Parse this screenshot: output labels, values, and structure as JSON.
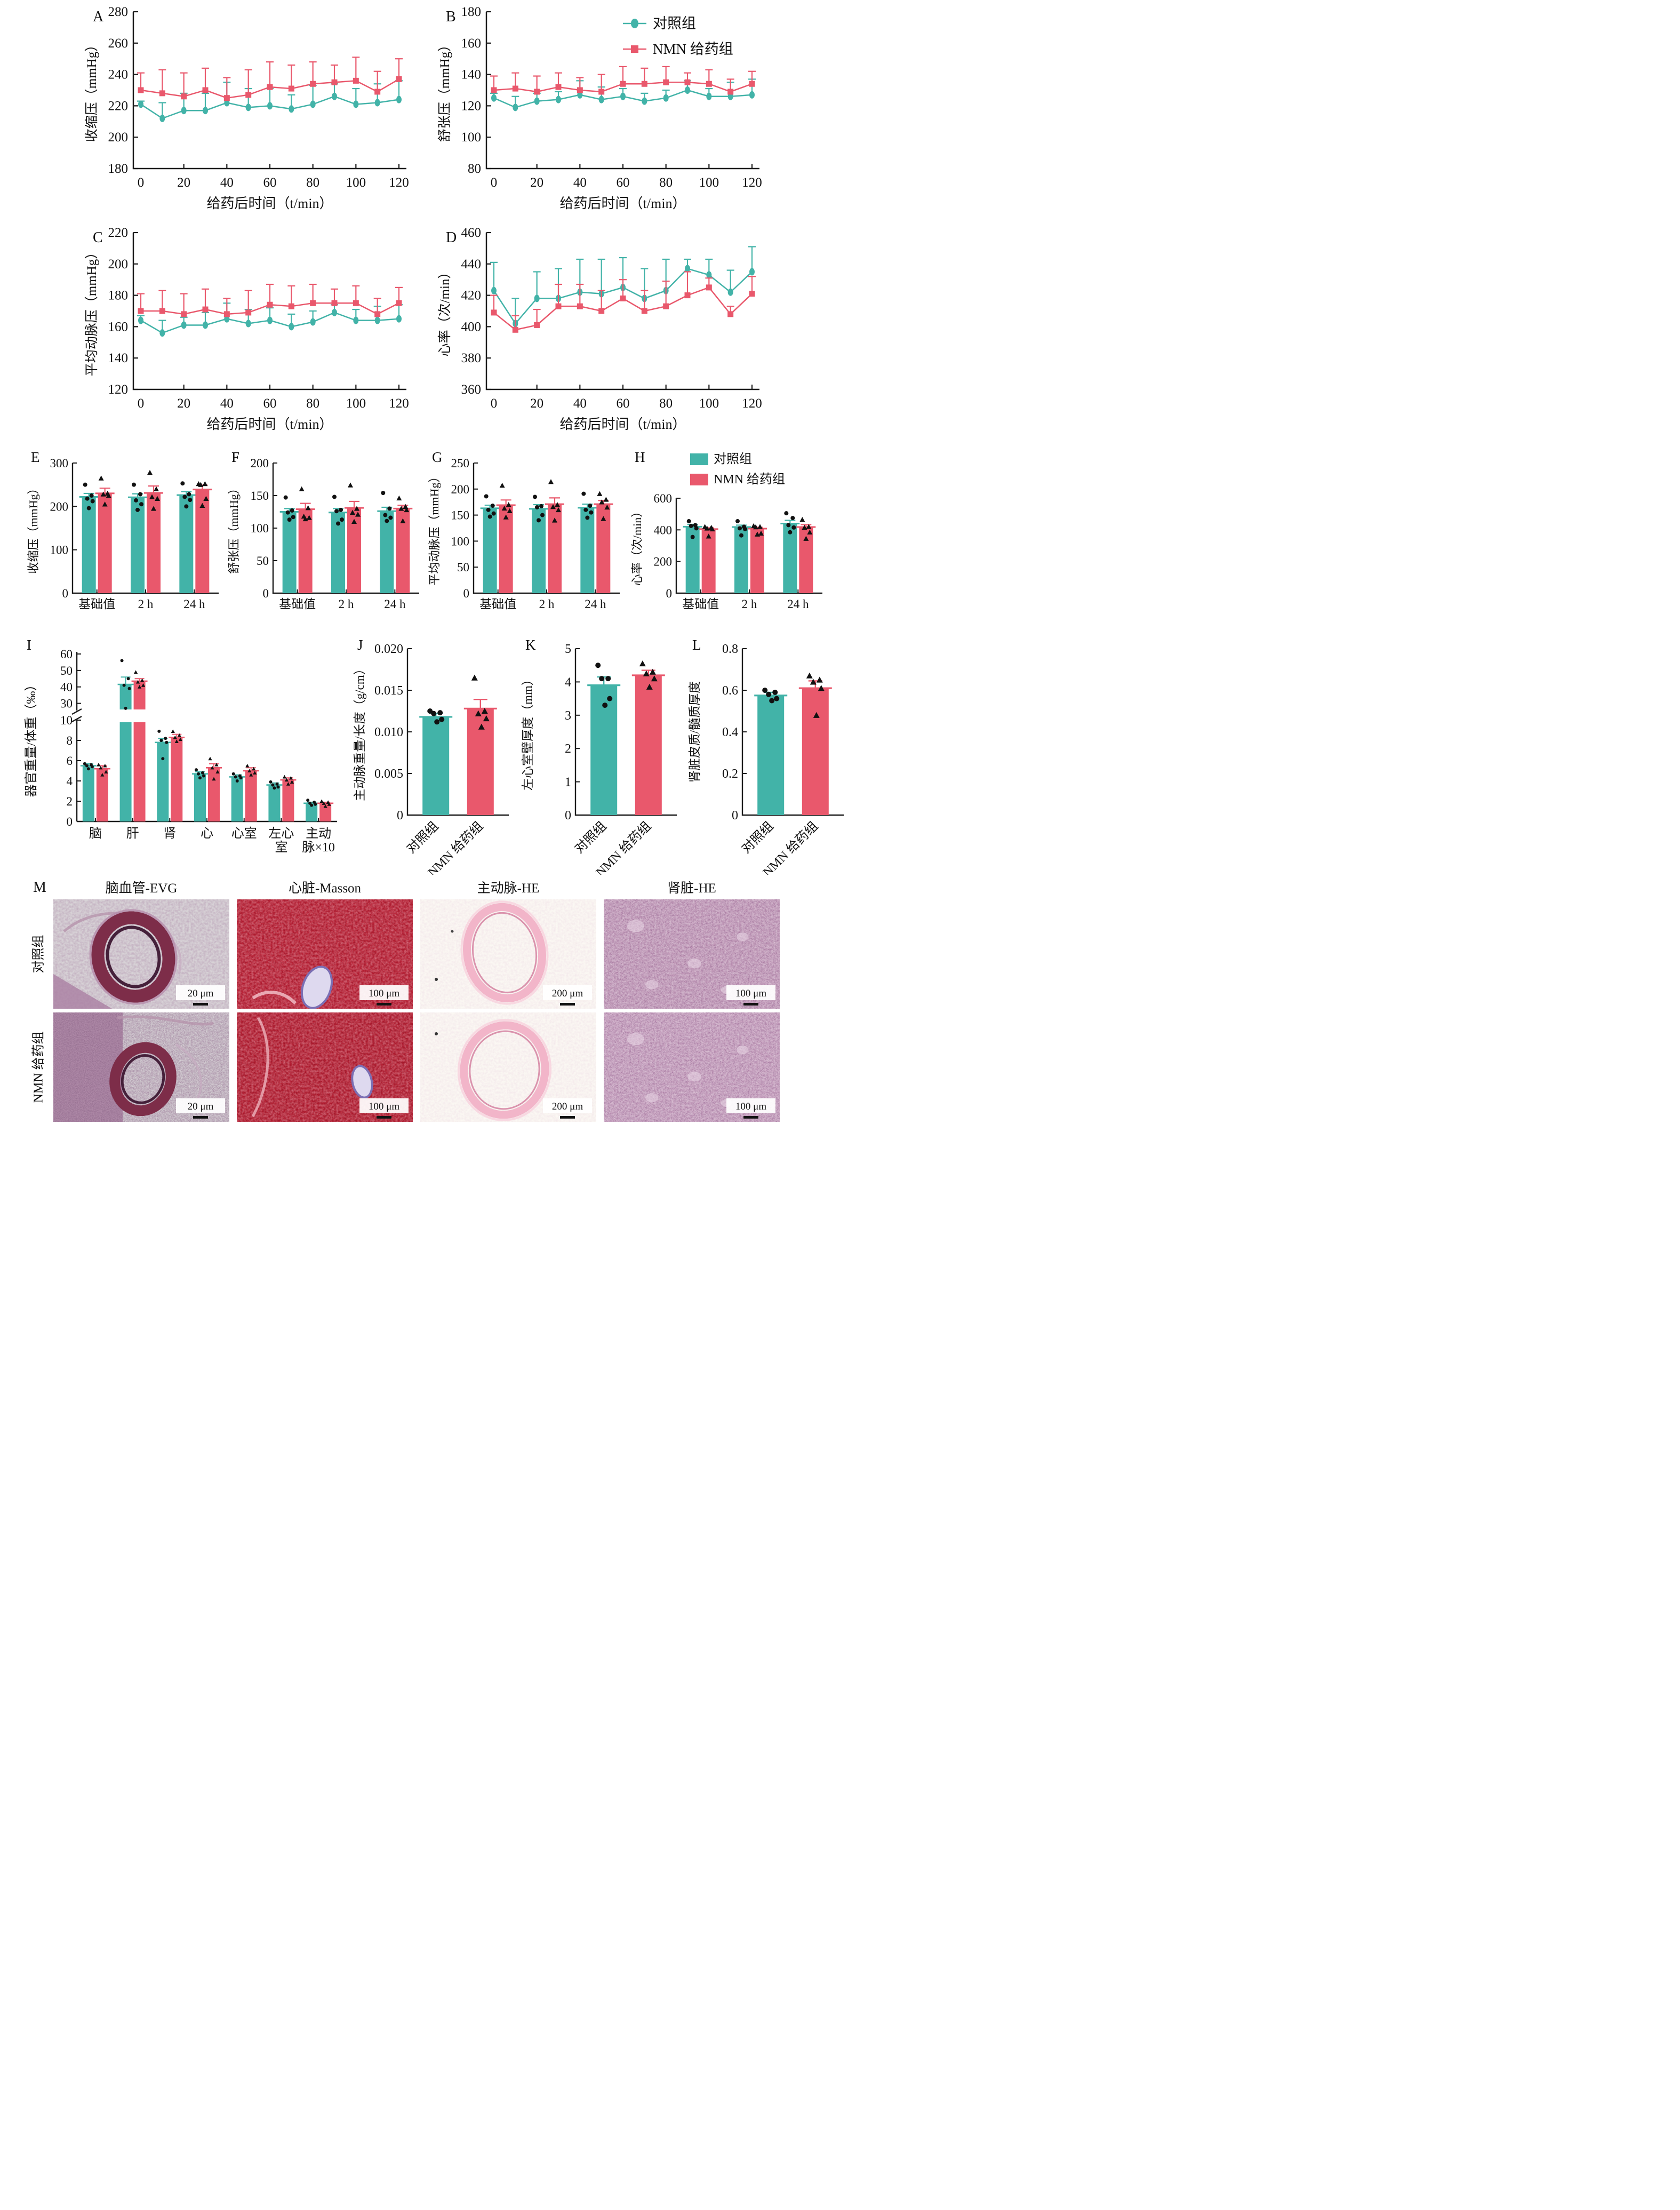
{
  "colors": {
    "control": "#42B3A8",
    "nmn": "#E9586C",
    "scatter": "#111111",
    "axis": "#1a1a1a"
  },
  "legend": {
    "control": "对照组",
    "nmn": "NMN 给药组"
  },
  "xlabel_time": "给药后时间（t/min）",
  "chart_data": [
    {
      "id": "A",
      "type": "line",
      "title": "",
      "ylabel": "收缩压（mmHg）",
      "xlabel": "给药后时间（t/min）",
      "ylim": [
        180,
        280
      ],
      "yticks": [
        180,
        200,
        220,
        240,
        260,
        280
      ],
      "x": [
        0,
        10,
        20,
        30,
        40,
        50,
        60,
        70,
        80,
        90,
        100,
        110,
        120
      ],
      "xticks": [
        0,
        20,
        40,
        60,
        80,
        100,
        120
      ],
      "series": [
        {
          "name": "对照组",
          "key": "control",
          "values": [
            221,
            212,
            217,
            217,
            222,
            219,
            220,
            218,
            221,
            226,
            221,
            222,
            224
          ],
          "err": [
            2,
            10,
            11,
            11,
            13,
            12,
            11,
            9,
            12,
            8,
            10,
            12,
            12
          ]
        },
        {
          "name": "NMN 给药组",
          "key": "nmn",
          "values": [
            230,
            228,
            226,
            230,
            225,
            227,
            232,
            231,
            234,
            235,
            236,
            229,
            237
          ],
          "err": [
            11,
            15,
            15,
            14,
            13,
            16,
            16,
            15,
            14,
            11,
            15,
            13,
            13
          ]
        }
      ],
      "legend": false
    },
    {
      "id": "B",
      "type": "line",
      "title": "",
      "ylabel": "舒张压（mmHg）",
      "xlabel": "给药后时间（t/min）",
      "ylim": [
        80,
        180
      ],
      "yticks": [
        80,
        100,
        120,
        140,
        160,
        180
      ],
      "x": [
        0,
        10,
        20,
        30,
        40,
        50,
        60,
        70,
        80,
        90,
        100,
        110,
        120
      ],
      "xticks": [
        0,
        20,
        40,
        60,
        80,
        100,
        120
      ],
      "series": [
        {
          "name": "对照组",
          "key": "control",
          "values": [
            125,
            119,
            123,
            124,
            127,
            124,
            126,
            123,
            125,
            130,
            126,
            126,
            127
          ],
          "err": [
            3,
            7,
            5,
            5,
            9,
            8,
            5,
            5,
            5,
            6,
            5,
            9,
            10
          ]
        },
        {
          "name": "NMN 给药组",
          "key": "nmn",
          "values": [
            130,
            131,
            129,
            132,
            130,
            129,
            134,
            134,
            135,
            135,
            134,
            129,
            134
          ],
          "err": [
            9,
            10,
            10,
            9,
            8,
            11,
            11,
            10,
            10,
            6,
            9,
            8,
            8
          ]
        }
      ],
      "legend": true
    },
    {
      "id": "C",
      "type": "line",
      "title": "",
      "ylabel": "平均动脉压（mmHg）",
      "xlabel": "给药后时间（t/min）",
      "ylim": [
        120,
        220
      ],
      "yticks": [
        120,
        140,
        160,
        180,
        200,
        220
      ],
      "x": [
        0,
        10,
        20,
        30,
        40,
        50,
        60,
        70,
        80,
        90,
        100,
        110,
        120
      ],
      "xticks": [
        0,
        20,
        40,
        60,
        80,
        100,
        120
      ],
      "series": [
        {
          "name": "对照组",
          "key": "control",
          "values": [
            164,
            156,
            161,
            161,
            165,
            162,
            164,
            160,
            163,
            169,
            164,
            164,
            165
          ],
          "err": [
            3,
            8,
            5,
            8,
            10,
            9,
            8,
            8,
            7,
            5,
            7,
            9,
            9
          ]
        },
        {
          "name": "NMN 给药组",
          "key": "nmn",
          "values": [
            170,
            170,
            168,
            171,
            168,
            169,
            174,
            173,
            175,
            175,
            175,
            168,
            175
          ],
          "err": [
            11,
            13,
            13,
            13,
            10,
            14,
            13,
            13,
            12,
            9,
            11,
            10,
            10
          ]
        }
      ],
      "legend": false
    },
    {
      "id": "D",
      "type": "line",
      "title": "",
      "ylabel": "心率（次/min）",
      "xlabel": "给药后时间（t/min）",
      "ylim": [
        360,
        460
      ],
      "yticks": [
        360,
        380,
        400,
        420,
        440,
        460
      ],
      "x": [
        0,
        10,
        20,
        30,
        40,
        50,
        60,
        70,
        80,
        90,
        100,
        110,
        120
      ],
      "xticks": [
        0,
        20,
        40,
        60,
        80,
        100,
        120
      ],
      "series": [
        {
          "name": "对照组",
          "key": "control",
          "values": [
            423,
            402,
            418,
            418,
            422,
            421,
            425,
            418,
            423,
            437,
            433,
            422,
            435
          ],
          "err": [
            18,
            16,
            17,
            19,
            21,
            22,
            19,
            19,
            20,
            6,
            10,
            14,
            16
          ]
        },
        {
          "name": "NMN 给药组",
          "key": "nmn",
          "values": [
            409,
            398,
            401,
            413,
            413,
            410,
            418,
            410,
            413,
            420,
            425,
            408,
            421
          ],
          "err": [
            11,
            9,
            10,
            14,
            14,
            13,
            12,
            13,
            16,
            15,
            6,
            5,
            11
          ]
        }
      ],
      "legend": false
    },
    {
      "id": "E",
      "type": "bar",
      "title": "",
      "ylabel": "收缩压（mmHg）",
      "categories": [
        "基础值",
        "2 h",
        "24 h"
      ],
      "ylim": [
        0,
        300
      ],
      "yticks": [
        0,
        100,
        200,
        300
      ],
      "series": [
        {
          "name": "对照组",
          "key": "control",
          "values": [
            222,
            221,
            226
          ],
          "err": [
            8,
            8,
            8
          ],
          "points": [
            [
              250,
              225,
              218,
              212,
              196
            ],
            [
              250,
              228,
              214,
              205,
              192
            ],
            [
              253,
              228,
              222,
              215,
              200
            ]
          ]
        },
        {
          "name": "NMN 给药组",
          "key": "nmn",
          "values": [
            230,
            231,
            239
          ],
          "err": [
            12,
            16,
            10
          ],
          "points": [
            [
              265,
              230,
              228,
              225,
              205
            ],
            [
              278,
              240,
              222,
              218,
              195
            ],
            [
              252,
              252,
              250,
              218,
              202
            ]
          ]
        }
      ],
      "legend": false
    },
    {
      "id": "F",
      "type": "bar",
      "title": "",
      "ylabel": "舒张压（mmHg）",
      "categories": [
        "基础值",
        "2 h",
        "24 h"
      ],
      "ylim": [
        0,
        200
      ],
      "yticks": [
        0,
        50,
        100,
        150,
        200
      ],
      "series": [
        {
          "name": "对照组",
          "key": "control",
          "values": [
            125,
            124,
            126
          ],
          "err": [
            5,
            6,
            6
          ],
          "points": [
            [
              147,
              127,
              124,
              117,
              113
            ],
            [
              148,
              128,
              126,
              113,
              107
            ],
            [
              154,
              130,
              120,
              116,
              111
            ]
          ]
        },
        {
          "name": "NMN 给药组",
          "key": "nmn",
          "values": [
            129,
            131,
            130
          ],
          "err": [
            9,
            10,
            5
          ],
          "points": [
            [
              160,
              131,
              118,
              116,
              114
            ],
            [
              166,
              130,
              124,
              121,
              110
            ],
            [
              146,
              133,
              130,
              128,
              111
            ]
          ]
        }
      ],
      "legend": false
    },
    {
      "id": "G",
      "type": "bar",
      "title": "",
      "ylabel": "平均动脉压（mmHg）",
      "categories": [
        "基础值",
        "2 h",
        "24 h"
      ],
      "ylim": [
        0,
        250
      ],
      "yticks": [
        0,
        50,
        100,
        150,
        200,
        250
      ],
      "series": [
        {
          "name": "对照组",
          "key": "control",
          "values": [
            163,
            162,
            164
          ],
          "err": [
            6,
            8,
            7
          ],
          "points": [
            [
              186,
              168,
              160,
              153,
              147
            ],
            [
              185,
              167,
              165,
              150,
              140
            ],
            [
              191,
              168,
              160,
              155,
              145
            ]
          ]
        },
        {
          "name": "NMN 给药组",
          "key": "nmn",
          "values": [
            169,
            171,
            171
          ],
          "err": [
            10,
            12,
            7
          ],
          "points": [
            [
              207,
              170,
              163,
              158,
              146
            ],
            [
              214,
              170,
              166,
              160,
              140
            ],
            [
              191,
              180,
              175,
              165,
              143
            ]
          ]
        }
      ],
      "legend": false
    },
    {
      "id": "H",
      "type": "bar",
      "title": "",
      "ylabel": "心率（次/min）",
      "categories": [
        "基础值",
        "2 h",
        "24 h"
      ],
      "ylim": [
        0,
        600
      ],
      "yticks": [
        0,
        200,
        400,
        600
      ],
      "series": [
        {
          "name": "对照组",
          "key": "control",
          "values": [
            420,
            418,
            440
          ],
          "err": [
            15,
            12,
            20
          ],
          "points": [
            [
              455,
              430,
              425,
              410,
              355
            ],
            [
              455,
              420,
              410,
              405,
              365
            ],
            [
              505,
              475,
              430,
              415,
              385
            ]
          ]
        },
        {
          "name": "NMN 给药组",
          "key": "nmn",
          "values": [
            405,
            408,
            418
          ],
          "err": [
            8,
            8,
            15
          ],
          "points": [
            [
              420,
              415,
              410,
              405,
              360
            ],
            [
              425,
              420,
              418,
              378,
              372
            ],
            [
              465,
              420,
              415,
              385,
              345
            ]
          ]
        }
      ],
      "legend": true
    },
    {
      "id": "I",
      "type": "broken-bar",
      "title": "",
      "ylabel": "器官重量/体重（‰）",
      "categories": [
        "脑",
        "肝",
        "肾",
        "心",
        "心室",
        "左心\n室",
        "主动\n脉×10"
      ],
      "lower_ylim": [
        0,
        10
      ],
      "lower_yticks": [
        0,
        2,
        4,
        6,
        8,
        10
      ],
      "upper_ylim": [
        25,
        60
      ],
      "upper_yticks": [
        30,
        40,
        50,
        60
      ],
      "series": [
        {
          "name": "对照组",
          "key": "control",
          "values": [
            5.5,
            41.5,
            7.8,
            4.7,
            4.4,
            3.6,
            1.8
          ],
          "err": [
            0.2,
            4.5,
            0.4,
            0.2,
            0.2,
            0.2,
            0.1
          ],
          "points": [
            [
              5.7,
              5.6,
              5.5,
              5.4,
              5.2
            ],
            [
              56,
              45,
              41,
              39,
              27
            ],
            [
              8.9,
              8.2,
              8.0,
              7.8,
              6.2
            ],
            [
              5.1,
              4.8,
              4.7,
              4.5,
              4.3
            ],
            [
              4.7,
              4.5,
              4.4,
              4.3,
              4.0
            ],
            [
              3.9,
              3.7,
              3.6,
              3.4,
              3.3
            ],
            [
              2.1,
              1.9,
              1.8,
              1.7,
              1.6
            ]
          ]
        },
        {
          "name": "NMN 给药组",
          "key": "nmn",
          "values": [
            5.2,
            43.5,
            8.3,
            5.3,
            5.0,
            4.1,
            1.8
          ],
          "err": [
            0.3,
            1.5,
            0.3,
            0.4,
            0.3,
            0.2,
            0.1
          ],
          "points": [
            [
              5.6,
              5.5,
              5.3,
              4.9,
              4.6
            ],
            [
              49,
              44,
              43,
              41,
              40
            ],
            [
              8.9,
              8.5,
              8.3,
              8.1,
              7.9
            ],
            [
              6.2,
              5.6,
              5.3,
              4.9,
              4.2
            ],
            [
              5.5,
              5.2,
              5.0,
              4.8,
              4.6
            ],
            [
              4.4,
              4.3,
              4.1,
              3.9,
              3.7
            ],
            [
              2.0,
              1.9,
              1.8,
              1.7,
              1.5
            ]
          ]
        }
      ],
      "legend": false
    },
    {
      "id": "J",
      "type": "single-bar",
      "title": "",
      "ylabel": "主动脉重量/长度（g/cm）",
      "ylim": [
        0,
        0.02
      ],
      "yticks": [
        0,
        0.005,
        0.01,
        0.015,
        0.02
      ],
      "ytick_labels": [
        "0",
        "0.005",
        "0.010",
        "0.015",
        "0.020"
      ],
      "bars": [
        {
          "label": "对照组",
          "key": "control",
          "value": 0.0118,
          "err": 0.0004,
          "points": [
            0.0125,
            0.0123,
            0.0122,
            0.0115,
            0.0112
          ]
        },
        {
          "label": "NMN 给药组",
          "key": "nmn",
          "value": 0.0128,
          "err": 0.0011,
          "points": [
            0.0165,
            0.0125,
            0.0122,
            0.0116,
            0.0106
          ]
        }
      ]
    },
    {
      "id": "K",
      "type": "single-bar",
      "title": "",
      "ylabel": "左心室壁厚度（mm）",
      "ylim": [
        0,
        5
      ],
      "yticks": [
        0,
        1,
        2,
        3,
        4,
        5
      ],
      "ytick_labels": [
        "0",
        "1",
        "2",
        "3",
        "4",
        "5"
      ],
      "bars": [
        {
          "label": "对照组",
          "key": "control",
          "value": 3.9,
          "err": 0.25,
          "points": [
            4.5,
            4.1,
            4.1,
            3.5,
            3.3
          ]
        },
        {
          "label": "NMN 给药组",
          "key": "nmn",
          "value": 4.2,
          "err": 0.15,
          "points": [
            4.55,
            4.3,
            4.25,
            4.1,
            3.85
          ]
        }
      ]
    },
    {
      "id": "L",
      "type": "single-bar",
      "title": "",
      "ylabel": "肾脏皮质/髓质厚度",
      "ylim": [
        0,
        0.8
      ],
      "yticks": [
        0,
        0.2,
        0.4,
        0.6,
        0.8
      ],
      "ytick_labels": [
        "0",
        "0.2",
        "0.4",
        "0.6",
        "0.8"
      ],
      "bars": [
        {
          "label": "对照组",
          "key": "control",
          "value": 0.575,
          "err": 0.015,
          "points": [
            0.6,
            0.59,
            0.58,
            0.56,
            0.55
          ]
        },
        {
          "label": "NMN 给药组",
          "key": "nmn",
          "value": 0.61,
          "err": 0.035,
          "points": [
            0.67,
            0.65,
            0.64,
            0.61,
            0.48
          ]
        }
      ]
    }
  ],
  "histology": {
    "letter": "M",
    "columns": [
      "脑血管-EVG",
      "心脏-Masson",
      "主动脉-HE",
      "肾脏-HE"
    ],
    "rows": [
      "对照组",
      "NMN 给药组"
    ],
    "scalebars": [
      [
        "20 μm",
        "100 μm",
        "200 μm",
        "100 μm"
      ],
      [
        "20 μm",
        "100 μm",
        "200 μm",
        "100 μm"
      ]
    ]
  }
}
